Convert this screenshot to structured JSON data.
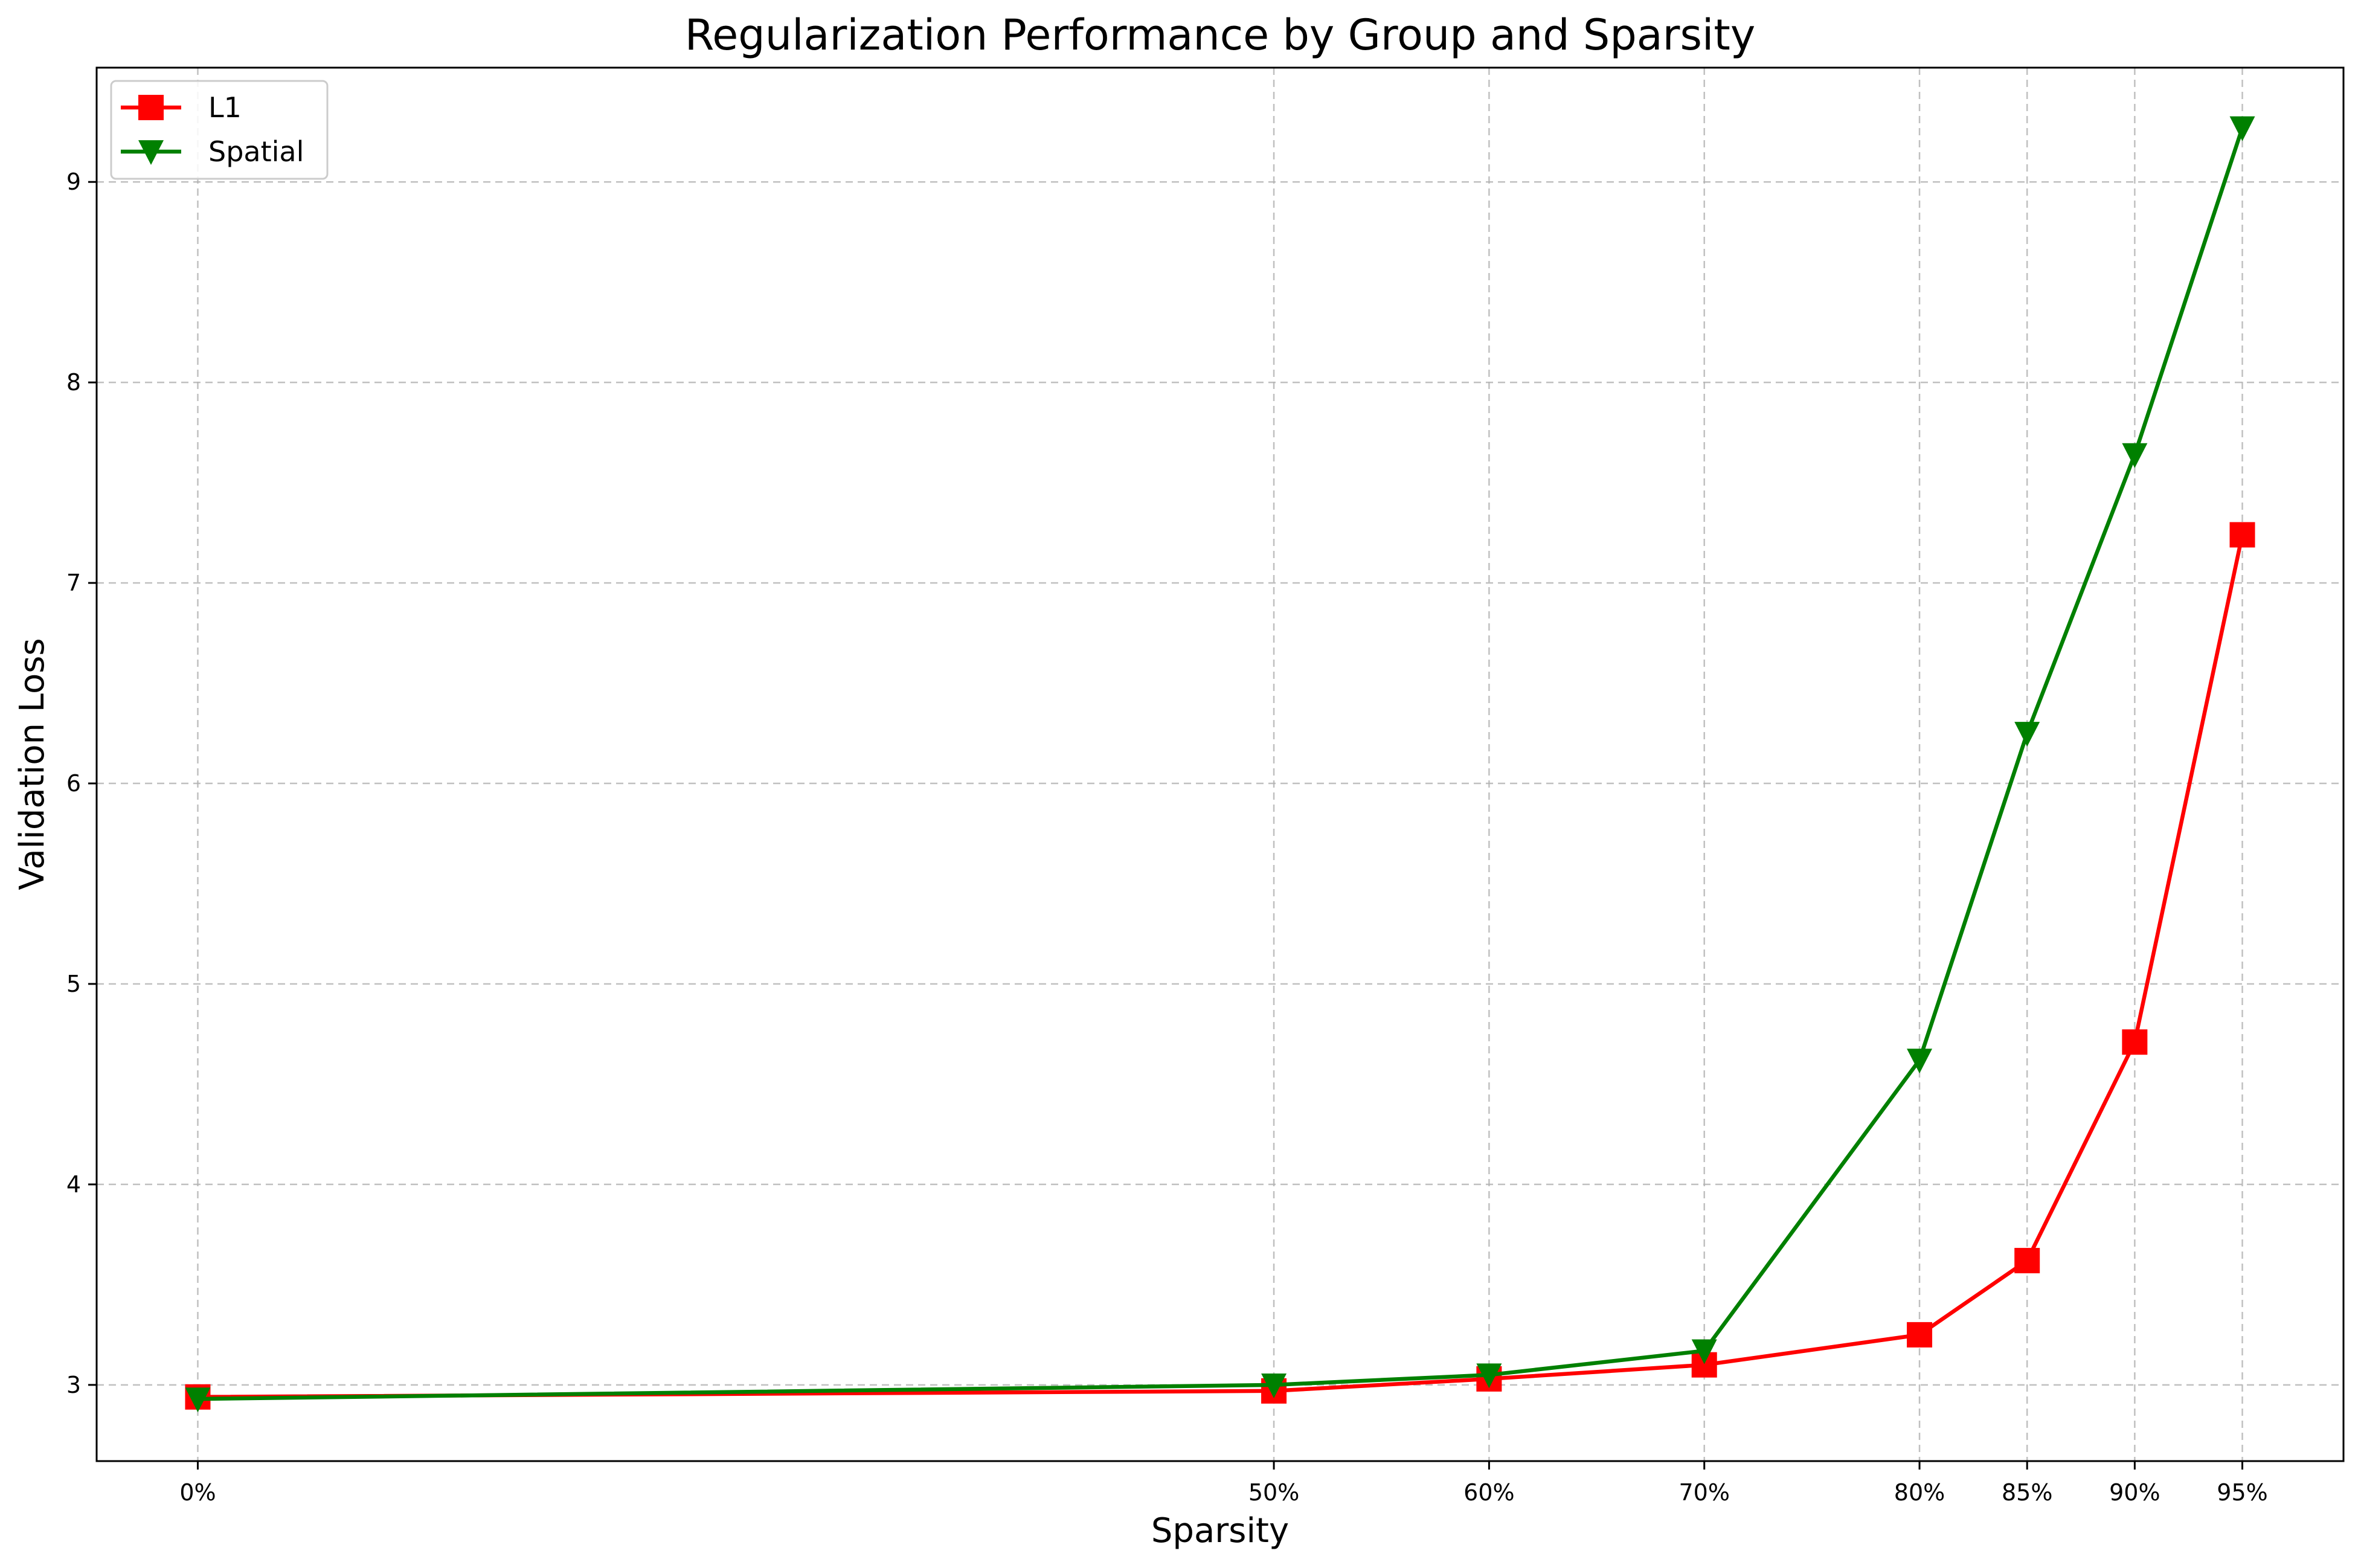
{
  "chart_data": {
    "type": "line",
    "title": "Regularization Performance by Group and Sparsity",
    "xlabel": "Sparsity",
    "ylabel": "Validation Loss",
    "x": [
      0,
      50,
      60,
      70,
      80,
      85,
      90,
      95
    ],
    "x_tick_labels": [
      "0%",
      "50%",
      "60%",
      "70%",
      "80%",
      "85%",
      "90%",
      "95%"
    ],
    "xlim": [
      -4.7,
      99.7
    ],
    "ylim": [
      2.62,
      9.57
    ],
    "y_ticks": [
      3,
      4,
      5,
      6,
      7,
      8,
      9
    ],
    "grid": true,
    "legend_position": "upper-left",
    "series": [
      {
        "name": "L1",
        "color": "#ff0000",
        "marker": "square",
        "values": [
          2.94,
          2.97,
          3.03,
          3.1,
          3.25,
          3.62,
          4.71,
          7.24
        ]
      },
      {
        "name": "Spatial",
        "color": "#008000",
        "marker": "triangle-down",
        "values": [
          2.93,
          3.0,
          3.05,
          3.17,
          4.62,
          6.25,
          7.64,
          9.27
        ]
      }
    ]
  }
}
